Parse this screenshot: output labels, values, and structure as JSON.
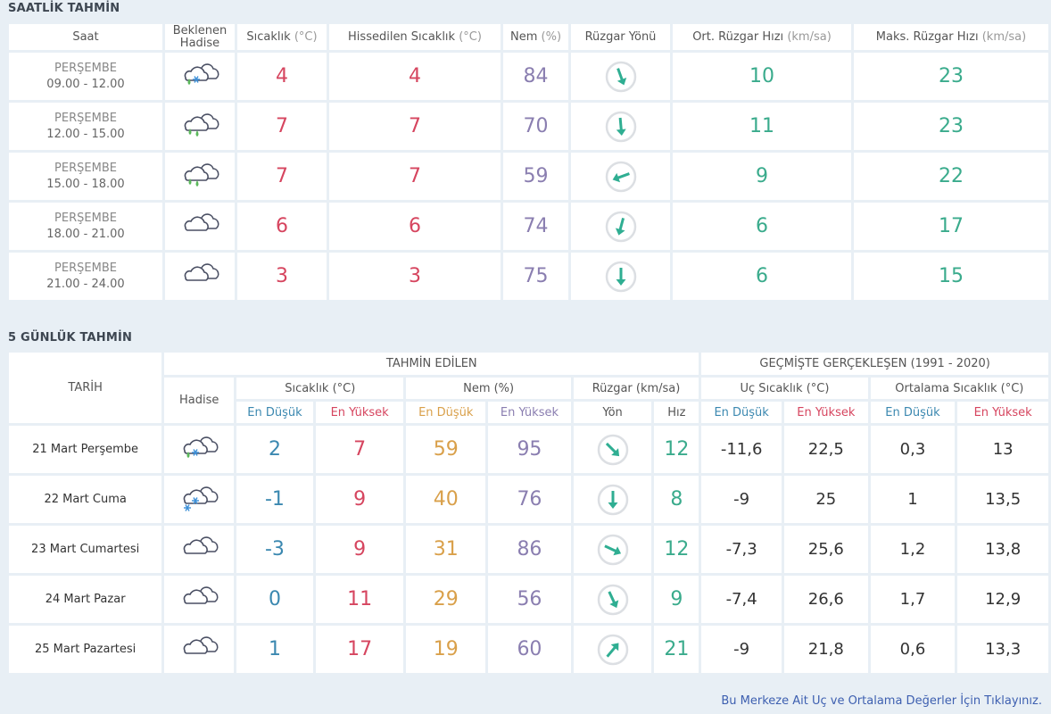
{
  "colors": {
    "temp": "#d6455f",
    "humidity": "#8a7eb0",
    "wind": "#3aab8c",
    "low": "#3b88b0",
    "humidity_low": "#d9a04a"
  },
  "hourly": {
    "title": "SAATLİK TAHMİN",
    "headers": {
      "saat": "Saat",
      "hadise": "Beklenen Hadise",
      "sicaklik": "Sıcaklık",
      "sicaklik_unit": "(°C)",
      "hissedilen": "Hissedilen Sıcaklık",
      "hissedilen_unit": "(°C)",
      "nem": "Nem",
      "nem_unit": "(%)",
      "yon": "Rüzgar Yönü",
      "ort": "Ort. Rüzgar Hızı",
      "ort_unit": "(km/sa)",
      "maks": "Maks. Rüzgar Hızı",
      "maks_unit": "(km/sa)"
    },
    "rows": [
      {
        "day": "PERŞEMBE",
        "time": "09.00 - 12.00",
        "icon": "rain-snow-icon",
        "temp": "4",
        "feels": "4",
        "humidity": "84",
        "wind_dir_deg": -20,
        "wind_avg": "10",
        "wind_max": "23"
      },
      {
        "day": "PERŞEMBE",
        "time": "12.00 - 15.00",
        "icon": "rain-icon",
        "temp": "7",
        "feels": "7",
        "humidity": "70",
        "wind_dir_deg": -5,
        "wind_avg": "11",
        "wind_max": "23"
      },
      {
        "day": "PERŞEMBE",
        "time": "15.00 - 18.00",
        "icon": "rain-icon",
        "temp": "7",
        "feels": "7",
        "humidity": "59",
        "wind_dir_deg": 70,
        "wind_avg": "9",
        "wind_max": "22"
      },
      {
        "day": "PERŞEMBE",
        "time": "18.00 - 21.00",
        "icon": "cloudy-icon",
        "temp": "6",
        "feels": "6",
        "humidity": "74",
        "wind_dir_deg": 15,
        "wind_avg": "6",
        "wind_max": "17"
      },
      {
        "day": "PERŞEMBE",
        "time": "21.00 - 24.00",
        "icon": "cloudy-icon",
        "temp": "3",
        "feels": "3",
        "humidity": "75",
        "wind_dir_deg": 0,
        "wind_avg": "6",
        "wind_max": "15"
      }
    ]
  },
  "daily": {
    "title": "5 GÜNLÜK TAHMİN",
    "headers": {
      "tarih": "TARİH",
      "tahmin": "TAHMİN EDİLEN",
      "gecmis": "GEÇMİŞTE GERÇEKLEŞEN (1991 - 2020)",
      "hadise": "Hadise",
      "sicaklik": "Sıcaklık (°C)",
      "nem": "Nem (%)",
      "ruzgar": "Rüzgar (km/sa)",
      "uc": "Uç Sıcaklık (°C)",
      "ortalama": "Ortalama Sıcaklık (°C)",
      "low": "En Düşük",
      "high": "En Yüksek",
      "yon": "Yön",
      "hiz": "Hız"
    },
    "rows": [
      {
        "date": "21 Mart Perşembe",
        "icon": "rain-snow-icon",
        "t_low": "2",
        "t_high": "7",
        "h_low": "59",
        "h_high": "95",
        "wind_dir_deg": -45,
        "wind_speed": "12",
        "ext_low": "-11,6",
        "ext_high": "22,5",
        "avg_low": "0,3",
        "avg_high": "13"
      },
      {
        "date": "22 Mart Cuma",
        "icon": "snow-icon",
        "t_low": "-1",
        "t_high": "9",
        "h_low": "40",
        "h_high": "76",
        "wind_dir_deg": 0,
        "wind_speed": "8",
        "ext_low": "-9",
        "ext_high": "25",
        "avg_low": "1",
        "avg_high": "13,5"
      },
      {
        "date": "23 Mart Cumartesi",
        "icon": "cloudy-icon",
        "t_low": "-3",
        "t_high": "9",
        "h_low": "31",
        "h_high": "86",
        "wind_dir_deg": -65,
        "wind_speed": "12",
        "ext_low": "-7,3",
        "ext_high": "25,6",
        "avg_low": "1,2",
        "avg_high": "13,8"
      },
      {
        "date": "24 Mart Pazar",
        "icon": "cloudy-icon",
        "t_low": "0",
        "t_high": "11",
        "h_low": "29",
        "h_high": "56",
        "wind_dir_deg": -25,
        "wind_speed": "9",
        "ext_low": "-7,4",
        "ext_high": "26,6",
        "avg_low": "1,7",
        "avg_high": "12,9"
      },
      {
        "date": "25 Mart Pazartesi",
        "icon": "cloudy-icon",
        "t_low": "1",
        "t_high": "17",
        "h_low": "19",
        "h_high": "60",
        "wind_dir_deg": -140,
        "wind_speed": "21",
        "ext_low": "-9",
        "ext_high": "21,8",
        "avg_low": "0,6",
        "avg_high": "13,3"
      }
    ]
  },
  "footer_link": "Bu Merkeze Ait Uç ve Ortalama Değerler İçin Tıklayınız."
}
